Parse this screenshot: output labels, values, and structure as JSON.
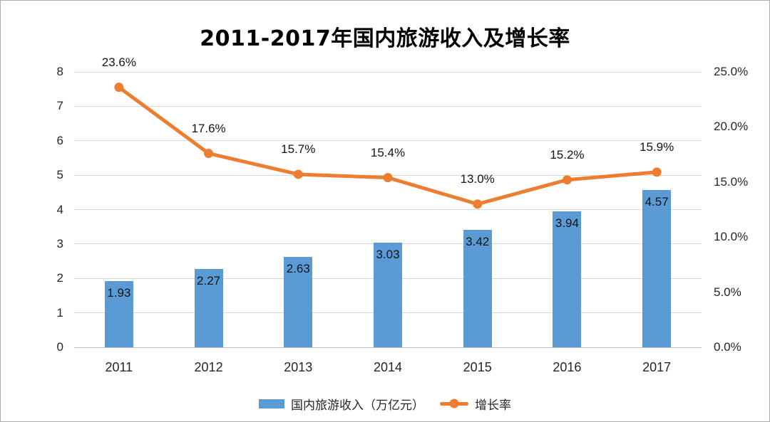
{
  "chart_data": {
    "type": "bar",
    "subtype": "bar+line combo",
    "title": "2011-2017年国内旅游收入及增长率",
    "categories": [
      "2011",
      "2012",
      "2013",
      "2014",
      "2015",
      "2016",
      "2017"
    ],
    "series": [
      {
        "name": "国内旅游收入（万亿元）",
        "type": "bar",
        "axis": "left",
        "color": "#5B9BD5",
        "values": [
          1.93,
          2.27,
          2.63,
          3.03,
          3.42,
          3.94,
          4.57
        ],
        "labels": [
          "1.93",
          "2.27",
          "2.63",
          "3.03",
          "3.42",
          "3.94",
          "4.57"
        ]
      },
      {
        "name": "增长率",
        "type": "line",
        "axis": "right",
        "color": "#ED7D31",
        "values": [
          23.6,
          17.6,
          15.7,
          15.4,
          13.0,
          15.2,
          15.9
        ],
        "labels": [
          "23.6%",
          "17.6%",
          "15.7%",
          "15.4%",
          "13.0%",
          "15.2%",
          "15.9%"
        ]
      }
    ],
    "left_axis": {
      "min": 0,
      "max": 8,
      "step": 1,
      "ticks": [
        "0",
        "1",
        "2",
        "3",
        "4",
        "5",
        "6",
        "7",
        "8"
      ]
    },
    "right_axis": {
      "min": 0,
      "max": 25,
      "step": 5,
      "ticks": [
        "0.0%",
        "5.0%",
        "10.0%",
        "15.0%",
        "20.0%",
        "25.0%"
      ]
    },
    "grid": true,
    "legend_position": "bottom"
  },
  "colors": {
    "bar": "#5B9BD5",
    "line": "#ED7D31",
    "gridline": "#D9D9D9",
    "baseline": "#BFBFBF",
    "text": "#262626"
  }
}
